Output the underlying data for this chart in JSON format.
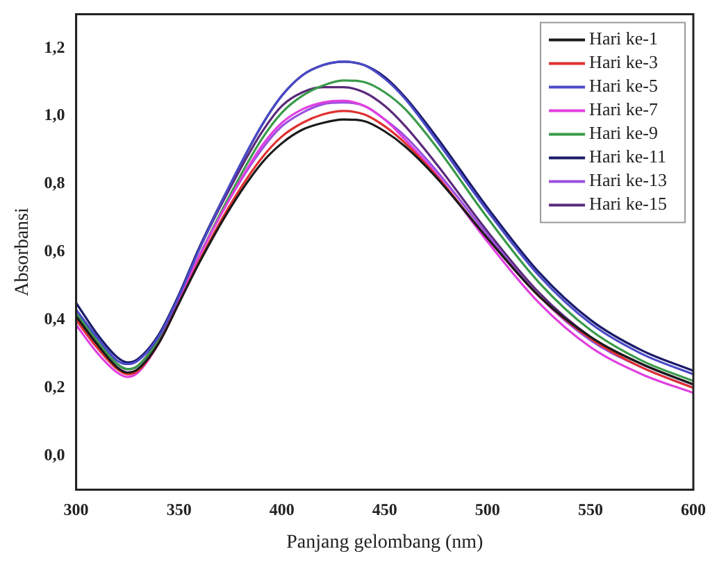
{
  "chart_data": {
    "type": "line",
    "xlabel": "Panjang gelombang (nm)",
    "ylabel": "Absorbansi",
    "x": [
      300,
      310,
      320,
      325,
      330,
      340,
      350,
      360,
      375,
      390,
      400,
      410,
      420,
      430,
      440,
      450,
      460,
      475,
      500,
      525,
      550,
      575,
      600
    ],
    "xlim": [
      300,
      600
    ],
    "xticks": [
      300,
      350,
      400,
      450,
      500,
      550,
      600
    ],
    "ylim": [
      -0.1,
      1.3
    ],
    "yticks": [
      {
        "value": 0,
        "label": "0,0"
      },
      {
        "value": 0.2,
        "label": "0,2"
      },
      {
        "value": 0.4,
        "label": "0,4"
      },
      {
        "value": 0.6,
        "label": "0,6"
      },
      {
        "value": 0.8,
        "label": "0,8"
      },
      {
        "value": 1,
        "label": "1,0"
      },
      {
        "value": 1.2,
        "label": "1,2"
      }
    ],
    "grid": false,
    "legend": "top right",
    "marker": "none",
    "line_style": "solid",
    "series": [
      {
        "name": "Hari ke-1",
        "color": "#1a1a1a",
        "values": [
          0.41,
          0.33,
          0.26,
          0.245,
          0.255,
          0.33,
          0.45,
          0.57,
          0.73,
          0.86,
          0.92,
          0.96,
          0.98,
          0.99,
          0.985,
          0.955,
          0.91,
          0.82,
          0.64,
          0.47,
          0.35,
          0.27,
          0.21
        ]
      },
      {
        "name": "Hari ke-3",
        "color": "#e03030",
        "values": [
          0.4,
          0.32,
          0.255,
          0.24,
          0.25,
          0.33,
          0.45,
          0.575,
          0.74,
          0.875,
          0.94,
          0.98,
          1.005,
          1.015,
          1.005,
          0.97,
          0.92,
          0.825,
          0.64,
          0.47,
          0.345,
          0.26,
          0.2
        ]
      },
      {
        "name": "Hari ke-5",
        "color": "#4a4ac8",
        "values": [
          0.43,
          0.35,
          0.28,
          0.27,
          0.28,
          0.35,
          0.47,
          0.61,
          0.8,
          0.97,
          1.06,
          1.12,
          1.15,
          1.16,
          1.15,
          1.11,
          1.05,
          0.93,
          0.72,
          0.53,
          0.39,
          0.3,
          0.24
        ]
      },
      {
        "name": "Hari ke-7",
        "color": "#e040e0",
        "values": [
          0.385,
          0.305,
          0.245,
          0.232,
          0.245,
          0.33,
          0.46,
          0.59,
          0.76,
          0.91,
          0.98,
          1.02,
          1.04,
          1.045,
          1.03,
          0.99,
          0.93,
          0.83,
          0.63,
          0.45,
          0.32,
          0.24,
          0.185
        ]
      },
      {
        "name": "Hari ke-9",
        "color": "#3a9a4a",
        "values": [
          0.42,
          0.34,
          0.27,
          0.255,
          0.265,
          0.34,
          0.46,
          0.59,
          0.77,
          0.93,
          1.01,
          1.06,
          1.09,
          1.105,
          1.1,
          1.07,
          1.02,
          0.91,
          0.7,
          0.51,
          0.37,
          0.28,
          0.22
        ]
      },
      {
        "name": "Hari ke-11",
        "color": "#1a1a6a",
        "values": [
          0.45,
          0.36,
          0.29,
          0.275,
          0.285,
          0.355,
          0.475,
          0.615,
          0.8,
          0.97,
          1.06,
          1.12,
          1.15,
          1.16,
          1.15,
          1.115,
          1.055,
          0.94,
          0.73,
          0.54,
          0.4,
          0.31,
          0.25
        ]
      },
      {
        "name": "Hari ke-13",
        "color": "#9a50e0",
        "values": [
          0.4,
          0.32,
          0.26,
          0.245,
          0.255,
          0.335,
          0.46,
          0.59,
          0.76,
          0.9,
          0.97,
          1.01,
          1.035,
          1.04,
          1.03,
          0.99,
          0.94,
          0.84,
          0.65,
          0.47,
          0.34,
          0.26,
          0.2
        ]
      },
      {
        "name": "Hari ke-15",
        "color": "#5a2a7a",
        "values": [
          0.42,
          0.34,
          0.27,
          0.255,
          0.265,
          0.345,
          0.47,
          0.61,
          0.79,
          0.95,
          1.03,
          1.07,
          1.085,
          1.085,
          1.07,
          1.03,
          0.97,
          0.86,
          0.66,
          0.48,
          0.35,
          0.27,
          0.21
        ]
      }
    ]
  }
}
